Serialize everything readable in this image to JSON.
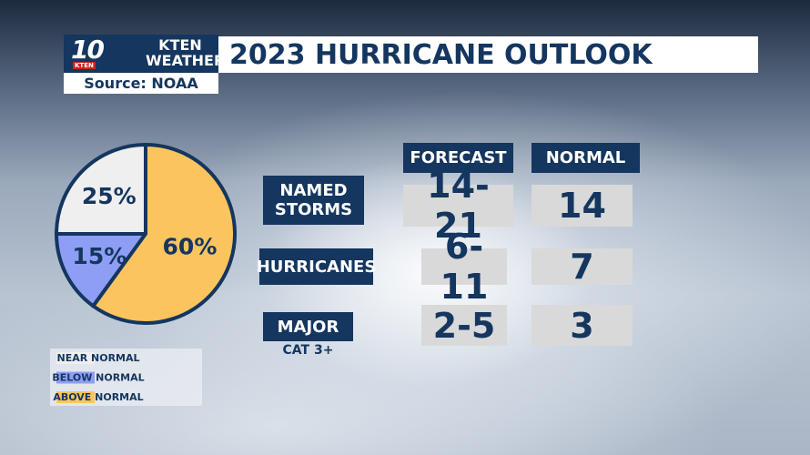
{
  "header": {
    "logo_number": "10",
    "logo_text": "KTEN",
    "brand": "KTEN WEATHER",
    "source": "Source: NOAA",
    "title": "2023 HURRICANE OUTLOOK"
  },
  "chart_data": {
    "type": "pie",
    "categories": [
      "NEAR NORMAL",
      "BELOW NORMAL",
      "ABOVE NORMAL"
    ],
    "values": [
      25,
      15,
      60
    ],
    "value_labels": [
      "25%",
      "15%",
      "60%"
    ],
    "colors": [
      "#efefef",
      "#8e9ef4",
      "#fcc45f"
    ],
    "legend": "bottom"
  },
  "table": {
    "headers": [
      "FORECAST",
      "NORMAL"
    ],
    "rows": [
      {
        "label": "NAMED STORMS",
        "forecast": "14-21",
        "normal": 14
      },
      {
        "label": "HURRICANES",
        "forecast": "6-11",
        "normal": 7
      },
      {
        "label": "MAJOR",
        "sublabel": "CAT 3+",
        "forecast": "2-5",
        "normal": 3
      }
    ]
  }
}
